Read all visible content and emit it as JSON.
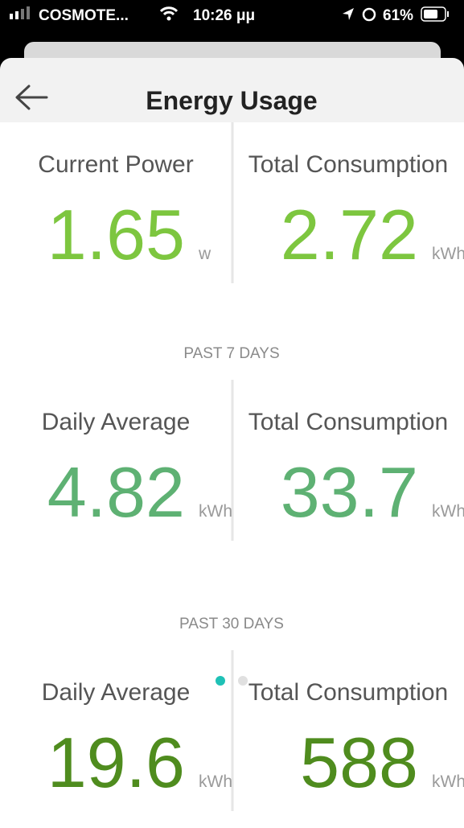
{
  "status_bar": {
    "carrier": "COSMOTE...",
    "time": "10:26 μμ",
    "battery": "61%"
  },
  "header": {
    "title": "Energy Usage"
  },
  "sections": [
    {
      "tiles": [
        {
          "label": "Current Power",
          "value": 1.65,
          "unit": "w",
          "color": "#7dc63f"
        },
        {
          "label": "Total Consumption",
          "value": 2.72,
          "unit": "kWh",
          "color": "#7dc63f"
        }
      ]
    },
    {
      "heading": "PAST 7 DAYS",
      "tiles": [
        {
          "label": "Daily Average",
          "value": 4.82,
          "unit": "kWh",
          "color": "#5eb173"
        },
        {
          "label": "Total Consumption",
          "value": 33.7,
          "unit": "kWh",
          "color": "#5eb173"
        }
      ]
    },
    {
      "heading": "PAST 30 DAYS",
      "tiles": [
        {
          "label": "Daily Average",
          "value": 19.6,
          "unit": "kWh",
          "color": "#4f8c1e"
        },
        {
          "label": "Total Consumption",
          "value": 588,
          "unit": "kWh",
          "color": "#4f8c1e"
        }
      ]
    }
  ]
}
